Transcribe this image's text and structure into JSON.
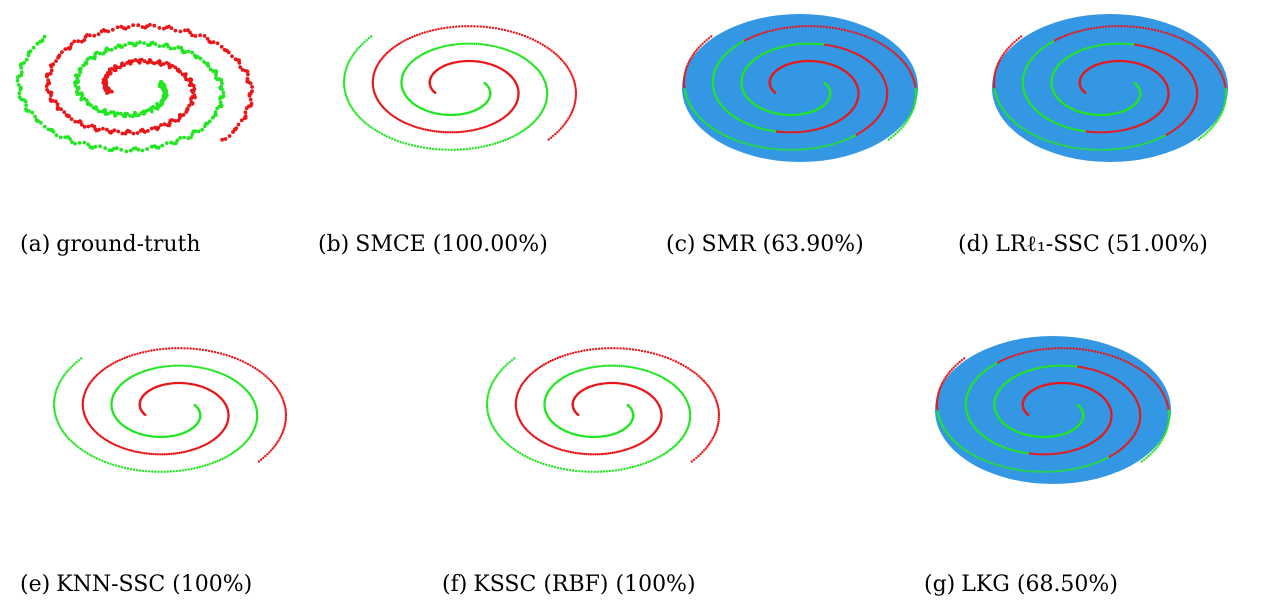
{
  "figure": {
    "colors": {
      "class_a": "#e8171a",
      "class_b": "#21e621",
      "graph_fill": "#3497e3",
      "background": "#ffffff"
    },
    "panels": [
      {
        "id": "a",
        "label": "(a)",
        "caption": "ground-truth",
        "style": "ground-truth",
        "graph": false,
        "accuracy_percent": null
      },
      {
        "id": "b",
        "label": "(b)",
        "caption": "SMCE (100.00%)",
        "style": "thin",
        "graph": false,
        "accuracy_percent": 100.0
      },
      {
        "id": "c",
        "label": "(c)",
        "caption": "SMR (63.90%)",
        "style": "thin",
        "graph": true,
        "accuracy_percent": 63.9
      },
      {
        "id": "d",
        "label": "(d)",
        "caption": "LRℓ₁-SSC (51.00%)",
        "style": "thin",
        "graph": true,
        "accuracy_percent": 51.0
      },
      {
        "id": "e",
        "label": "(e)",
        "caption": "KNN-SSC (100%)",
        "style": "thin",
        "graph": false,
        "accuracy_percent": 100
      },
      {
        "id": "f",
        "label": "(f)",
        "caption": "KSSC (RBF) (100%)",
        "style": "thin",
        "graph": false,
        "accuracy_percent": 100
      },
      {
        "id": "g",
        "label": "(g)",
        "caption": "LKG (68.50%)",
        "style": "thin",
        "graph": true,
        "accuracy_percent": 68.5
      }
    ]
  }
}
